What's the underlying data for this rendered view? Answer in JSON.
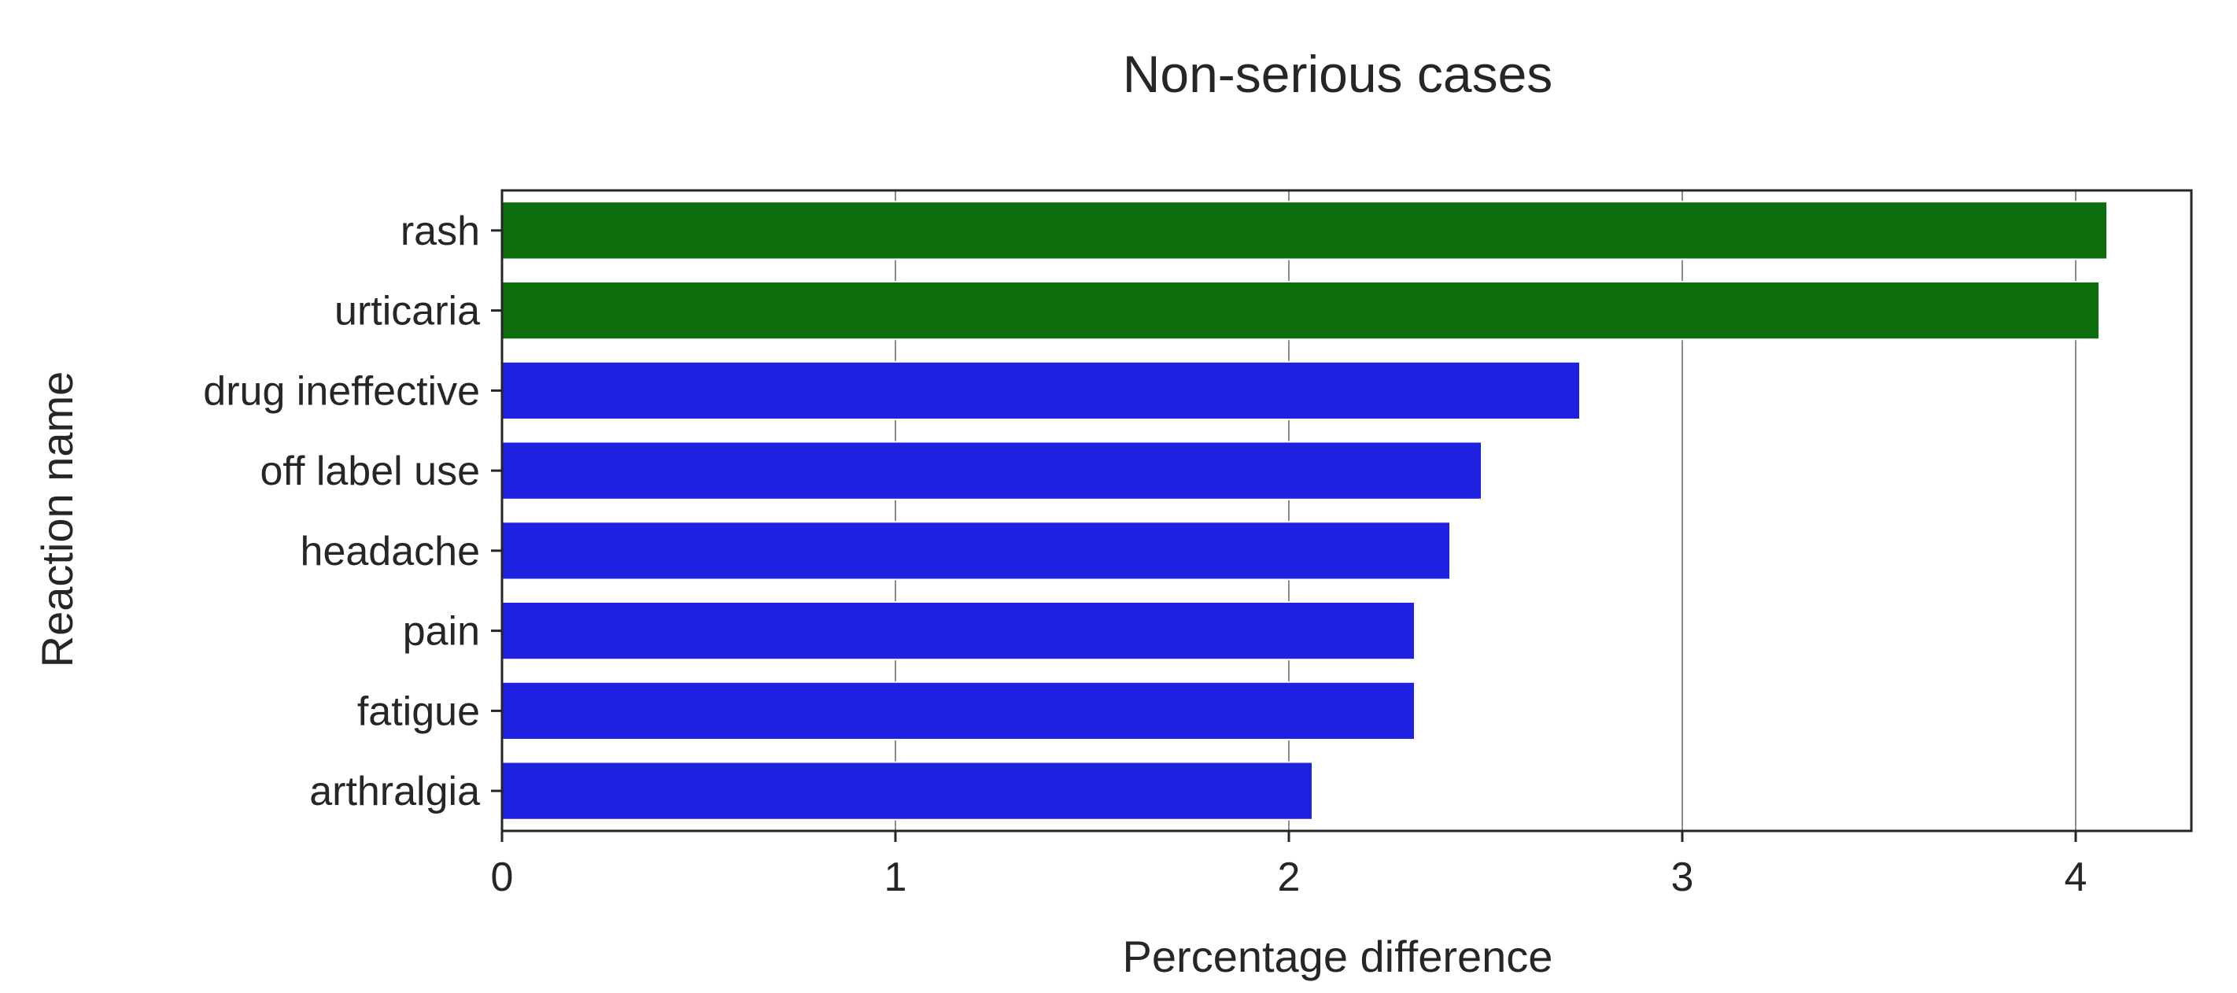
{
  "chart_data": {
    "type": "bar",
    "orientation": "horizontal",
    "title": "Non-serious cases",
    "xlabel": "Percentage difference",
    "ylabel": "Reaction name",
    "categories": [
      "rash",
      "urticaria",
      "drug ineffective",
      "off label use",
      "headache",
      "pain",
      "fatigue",
      "arthralgia"
    ],
    "values": [
      4.08,
      4.06,
      2.74,
      2.49,
      2.41,
      2.32,
      2.32,
      2.06
    ],
    "bar_colors": [
      "#0c6e0c",
      "#0c6e0c",
      "#2020e0",
      "#2020e0",
      "#2020e0",
      "#2020e0",
      "#2020e0",
      "#2020e0"
    ],
    "xlim": [
      0,
      4.3
    ],
    "xticks": [
      "0",
      "1",
      "2",
      "3",
      "4"
    ],
    "grid": "x"
  }
}
